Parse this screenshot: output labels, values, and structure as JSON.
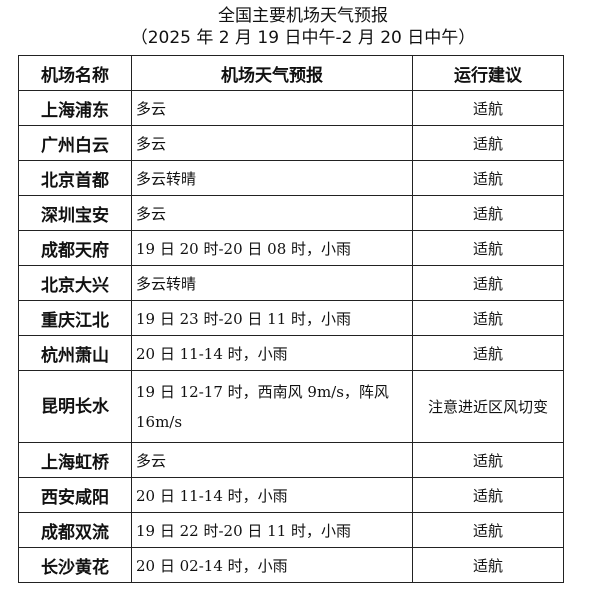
{
  "title": "全国主要机场天气预报",
  "subtitle": "（2025 年 2 月 19 日中午-2 月 20 日中午）",
  "headers": [
    "机场名称",
    "机场天气预报",
    "运行建议"
  ],
  "rows": [
    {
      "name": "上海浦东",
      "forecast": "多云",
      "advice": "适航"
    },
    {
      "name": "广州白云",
      "forecast": "多云",
      "advice": "适航"
    },
    {
      "name": "北京首都",
      "forecast": "多云转晴",
      "advice": "适航"
    },
    {
      "name": "深圳宝安",
      "forecast": "多云",
      "advice": "适航"
    },
    {
      "name": "成都天府",
      "forecast": "19 日 20 时-20 日 08 时，小雨",
      "advice": "适航"
    },
    {
      "name": "北京大兴",
      "forecast": "多云转晴",
      "advice": "适航"
    },
    {
      "name": "重庆江北",
      "forecast": "19 日 23 时-20 日 11 时，小雨",
      "advice": "适航"
    },
    {
      "name": "杭州萧山",
      "forecast": "20 日 11-14 时，小雨",
      "advice": "适航"
    },
    {
      "name": "昆明长水",
      "forecast": "19 日 12-17 时，西南风 9m/s，阵风 16m/s",
      "advice": "注意进近区风切变"
    },
    {
      "name": "上海虹桥",
      "forecast": "多云",
      "advice": "适航"
    },
    {
      "name": "西安咸阳",
      "forecast": "20 日 11-14 时，小雨",
      "advice": "适航"
    },
    {
      "name": "成都双流",
      "forecast": "19 日 22 时-20 日 11 时，小雨",
      "advice": "适航"
    },
    {
      "name": "长沙黄花",
      "forecast": "20 日 02-14 时，小雨",
      "advice": "适航"
    }
  ]
}
